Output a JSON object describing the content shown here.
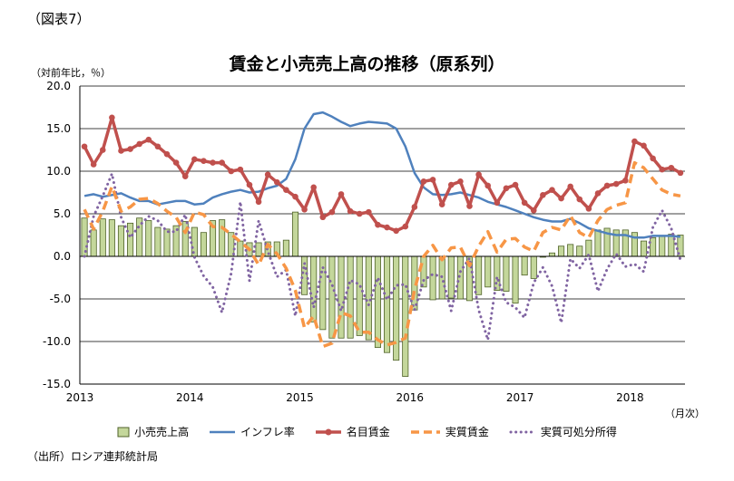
{
  "figure_label": "（図表7）",
  "source_note": "（出所）ロシア連邦統計局",
  "chart_data": {
    "type": "bar+line",
    "title": "賃金と小売売上高の推移（原系列）",
    "ylabel": "（対前年比，％）",
    "xunit": "（月次）",
    "ylim": [
      -15,
      20
    ],
    "yticks": [
      "20.0",
      "15.0",
      "10.0",
      "5.0",
      "0.0",
      "-5.0",
      "-10.0",
      "-15.0"
    ],
    "ytick_values": [
      20,
      15,
      10,
      5,
      0,
      -5,
      -10,
      -15
    ],
    "xtick_labels": [
      "2013",
      "2014",
      "2015",
      "2016",
      "2017",
      "2018"
    ],
    "grid": "horizontal",
    "legend_position": "bottom",
    "months": [
      "2013-01",
      "2013-02",
      "2013-03",
      "2013-04",
      "2013-05",
      "2013-06",
      "2013-07",
      "2013-08",
      "2013-09",
      "2013-10",
      "2013-11",
      "2013-12",
      "2014-01",
      "2014-02",
      "2014-03",
      "2014-04",
      "2014-05",
      "2014-06",
      "2014-07",
      "2014-08",
      "2014-09",
      "2014-10",
      "2014-11",
      "2014-12",
      "2015-01",
      "2015-02",
      "2015-03",
      "2015-04",
      "2015-05",
      "2015-06",
      "2015-07",
      "2015-08",
      "2015-09",
      "2015-10",
      "2015-11",
      "2015-12",
      "2016-01",
      "2016-02",
      "2016-03",
      "2016-04",
      "2016-05",
      "2016-06",
      "2016-07",
      "2016-08",
      "2016-09",
      "2016-10",
      "2016-11",
      "2016-12",
      "2017-01",
      "2017-02",
      "2017-03",
      "2017-04",
      "2017-05",
      "2017-06",
      "2017-07",
      "2017-08",
      "2017-09",
      "2017-10",
      "2017-11",
      "2017-12",
      "2018-01",
      "2018-02",
      "2018-03",
      "2018-04",
      "2018-05",
      "2018-06"
    ],
    "series": [
      {
        "name": "小売売上高",
        "kind": "bar",
        "color": "#c4d79b",
        "stroke": "#4f6228",
        "values": [
          4.5,
          3.1,
          4.4,
          4.3,
          3.6,
          3.9,
          4.5,
          4.2,
          3.4,
          3.2,
          3.6,
          4.1,
          3.4,
          2.8,
          4.2,
          4.3,
          2.8,
          1.8,
          1.6,
          1.6,
          1.7,
          1.7,
          1.9,
          5.2,
          -4.5,
          -7.7,
          -8.6,
          -9.6,
          -9.6,
          -9.6,
          -9.3,
          -9.8,
          -10.7,
          -11.3,
          -12.2,
          -14.1,
          -6.3,
          -3.6,
          -5.1,
          -5.0,
          -4.9,
          -5.0,
          -5.2,
          -4.5,
          -3.6,
          -4.0,
          -4.1,
          -5.5,
          -2.2,
          -2.6,
          -0.1,
          0.4,
          1.2,
          1.4,
          1.2,
          1.9,
          3.1,
          3.3,
          3.1,
          3.1,
          2.8,
          1.8,
          2.2,
          2.4,
          2.6,
          2.5
        ]
      },
      {
        "name": "インフレ率",
        "kind": "line",
        "color": "#4f81bd",
        "values": [
          7.1,
          7.3,
          7.0,
          7.2,
          7.4,
          6.9,
          6.5,
          6.5,
          6.1,
          6.3,
          6.5,
          6.5,
          6.1,
          6.2,
          6.9,
          7.3,
          7.6,
          7.8,
          7.5,
          7.6,
          8.0,
          8.3,
          9.1,
          11.4,
          15.0,
          16.7,
          16.9,
          16.4,
          15.8,
          15.3,
          15.6,
          15.8,
          15.7,
          15.6,
          15.0,
          12.9,
          9.8,
          8.1,
          7.3,
          7.2,
          7.3,
          7.5,
          7.2,
          6.9,
          6.4,
          6.1,
          5.8,
          5.4,
          5.0,
          4.6,
          4.3,
          4.1,
          4.1,
          4.4,
          3.9,
          3.3,
          3.0,
          2.7,
          2.5,
          2.5,
          2.2,
          2.2,
          2.4,
          2.4,
          2.4,
          2.3
        ]
      },
      {
        "name": "名目賃金",
        "kind": "line-marker",
        "color": "#c0504d",
        "values": [
          12.9,
          10.8,
          12.5,
          16.3,
          12.4,
          12.6,
          13.2,
          13.7,
          12.9,
          12.0,
          11.0,
          9.4,
          11.4,
          11.2,
          11.0,
          11.0,
          10.0,
          10.2,
          8.4,
          6.4,
          9.6,
          8.7,
          7.8,
          7.0,
          5.5,
          8.1,
          4.6,
          5.2,
          7.3,
          5.3,
          5.0,
          5.2,
          3.7,
          3.4,
          3.0,
          3.5,
          5.8,
          8.8,
          9.0,
          6.1,
          8.4,
          8.8,
          5.9,
          9.6,
          8.3,
          6.3,
          8.0,
          8.4,
          6.3,
          5.4,
          7.2,
          7.8,
          6.8,
          8.2,
          6.7,
          5.6,
          7.4,
          8.3,
          8.5,
          8.9,
          13.5,
          13.0,
          11.5,
          10.2,
          10.4,
          9.8
        ]
      },
      {
        "name": "実質賃金",
        "kind": "dash",
        "color": "#f79646",
        "values": [
          5.5,
          3.2,
          5.3,
          8.2,
          5.3,
          5.8,
          6.7,
          6.8,
          6.2,
          5.3,
          4.6,
          2.8,
          5.2,
          4.9,
          3.5,
          3.4,
          2.6,
          1.7,
          0.8,
          -1.0,
          1.4,
          0.3,
          -1.4,
          -4.0,
          -8.4,
          -7.0,
          -10.6,
          -10.2,
          -6.6,
          -7.0,
          -8.9,
          -8.9,
          -9.8,
          -10.4,
          -10.1,
          -9.6,
          -3.9,
          0.0,
          1.3,
          -0.4,
          1.0,
          1.1,
          -1.1,
          1.2,
          2.9,
          0.5,
          2.0,
          2.1,
          1.1,
          0.6,
          2.8,
          3.4,
          3.1,
          4.8,
          2.8,
          2.2,
          4.2,
          5.5,
          6.0,
          6.3,
          11.0,
          10.4,
          9.1,
          7.8,
          7.3,
          7.1
        ]
      },
      {
        "name": "実質可処分所得",
        "kind": "dot",
        "color": "#8064a2",
        "values": [
          0.0,
          4.7,
          7.1,
          9.7,
          4.6,
          2.2,
          3.6,
          4.7,
          4.2,
          2.9,
          2.9,
          4.9,
          -0.1,
          -2.3,
          -3.6,
          -6.6,
          -2.0,
          6.4,
          -2.9,
          4.2,
          0.6,
          -2.4,
          -1.6,
          -7.0,
          -0.8,
          -6.0,
          -1.3,
          -3.3,
          -6.4,
          -2.8,
          -3.3,
          -5.7,
          -2.5,
          -5.1,
          -3.4,
          -3.3,
          -6.3,
          -2.8,
          -2.1,
          -2.4,
          -6.4,
          -1.8,
          -0.2,
          -6.3,
          -9.8,
          -2.4,
          -5.4,
          -6.0,
          -7.2,
          -3.1,
          -1.3,
          -3.5,
          -7.8,
          -0.3,
          -1.4,
          0.2,
          -4.1,
          -1.5,
          0.3,
          -1.2,
          -0.9,
          -1.8,
          3.4,
          5.4,
          3.3,
          -0.4
        ]
      }
    ]
  }
}
